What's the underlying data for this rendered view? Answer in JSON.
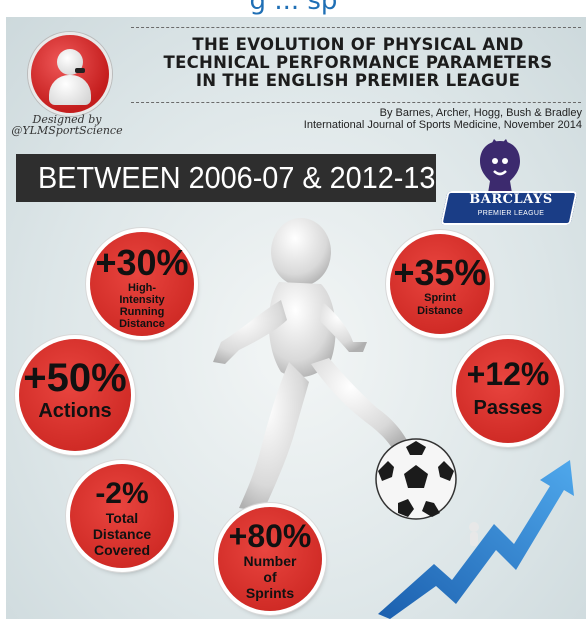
{
  "header": {
    "top_title": "g ... sp",
    "title_lines": [
      "THE EVOLUTION OF PHYSICAL AND",
      "TECHNICAL PERFORMANCE PARAMETERS",
      "IN THE ENGLISH PREMIER LEAGUE"
    ],
    "designed_by_line1": "Designed by",
    "designed_by_line2": "@YLMSportScience",
    "citation_line1": "By Barnes, Archer, Hogg, Bush & Bradley",
    "citation_line2": "International Journal of Sports Medicine, November 2014"
  },
  "banner": {
    "text": "BETWEEN 2006-07 & 2012-13"
  },
  "league_logo": {
    "brand": "BARCLAYS",
    "subtitle": "PREMIER LEAGUE"
  },
  "stats": [
    {
      "value": "+30%",
      "label": "High-Intensity Running Distance"
    },
    {
      "value": "+35%",
      "label": "Sprint Distance"
    },
    {
      "value": "+50%",
      "label": "Actions"
    },
    {
      "value": "+12%",
      "label": "Passes"
    },
    {
      "value": "-2%",
      "label": "Total Distance Covered"
    },
    {
      "value": "+80%",
      "label": "Number of Sprints"
    }
  ],
  "colors": {
    "title_blue": "#1f6fb5",
    "stat_red": "#d93530",
    "banner_dark": "#2e2e2e",
    "badge_blue": "#1a3d86",
    "arrow_blue": "#2f86d6"
  },
  "icons": [
    "whistle-referee-logo-icon",
    "lion-crest-icon",
    "soccer-ball-icon",
    "rising-arrow-icon",
    "running-figure-illustration"
  ]
}
